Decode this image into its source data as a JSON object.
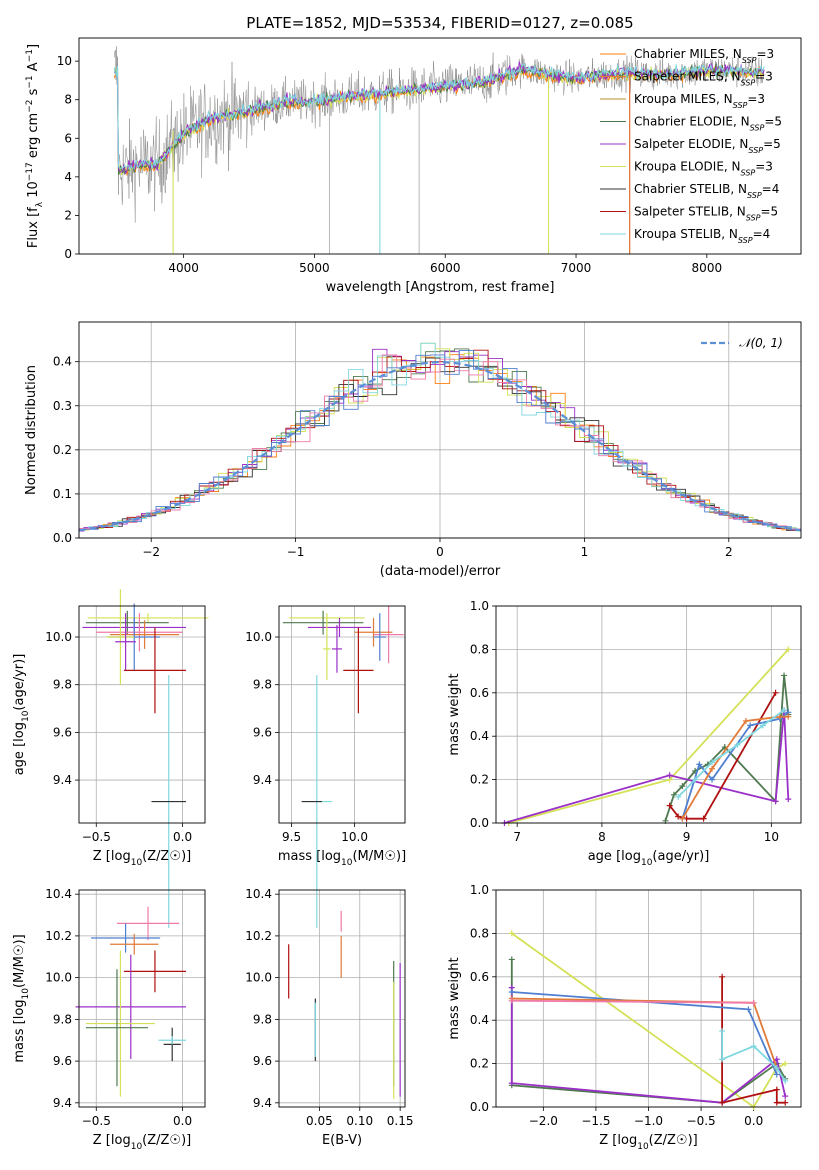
{
  "figure": {
    "title": "PLATE=1852, MJD=53534, FIBERID=0127, z=0.085"
  },
  "colors": {
    "Chabrier MILES": "#ff7f0e",
    "Salpeter MILES": "#e07b39",
    "Kroupa MILES": "#bc8f2c",
    "Chabrier ELODIE": "#4f7a4f",
    "Salpeter ELODIE": "#9b30c8",
    "Kroupa ELODIE": "#d4e157",
    "Chabrier STELIB": "#333333",
    "Salpeter STELIB": "#b01010",
    "Kroupa STELIB": "#7fd7e0",
    "MILES blue": "#4f7fd0",
    "MILES pink": "#f07aa8",
    "data": "#888888",
    "normal curve": "#5b8fd6"
  },
  "chart_data": [
    {
      "type": "line",
      "panel": "spectrum",
      "title": "PLATE=1852, MJD=53534, FIBERID=0127, z=0.085",
      "xlabel": "wavelength [Angstrom, rest frame]",
      "ylabel": "Flux [f_λ 10^-17 erg cm^-2 s^-1 A^-1]",
      "xlim": [
        3200,
        8720
      ],
      "ylim": [
        0,
        11.2
      ],
      "xticks": [
        4000,
        5000,
        6000,
        7000,
        8000
      ],
      "yticks": [
        0,
        2,
        4,
        6,
        8,
        10
      ],
      "legend_position": "top-right",
      "legend": [
        {
          "label": "Chabrier MILES",
          "sub": "SSP",
          "n": "3",
          "color": "#ff7f0e"
        },
        {
          "label": "Salpeter MILES",
          "sub": "SSP",
          "n": "3",
          "color": "#e07b39"
        },
        {
          "label": "Kroupa MILES",
          "sub": "SSP",
          "n": "3",
          "color": "#bc8f2c"
        },
        {
          "label": "Chabrier ELODIE",
          "sub": "SSP",
          "n": "5",
          "color": "#4f7a4f"
        },
        {
          "label": "Salpeter ELODIE",
          "sub": "SSP",
          "n": "5",
          "color": "#9b30c8"
        },
        {
          "label": "Kroupa ELODIE",
          "sub": "SSP",
          "n": "3",
          "color": "#d4e157"
        },
        {
          "label": "Chabrier STELIB",
          "sub": "SSP",
          "n": "4",
          "color": "#333333"
        },
        {
          "label": "Salpeter STELIB",
          "sub": "SSP",
          "n": "5",
          "color": "#b01010"
        },
        {
          "label": "Kroupa STELIB",
          "sub": "SSP",
          "n": "4",
          "color": "#7fd7e0"
        }
      ],
      "model_continuum": {
        "x": [
          3500,
          3650,
          3800,
          3900,
          4000,
          4200,
          4500,
          4800,
          5000,
          5300,
          5600,
          6000,
          6300,
          6600,
          6800,
          7000,
          7200,
          7400,
          7600,
          7800,
          8000,
          8200,
          8400
        ],
        "y": [
          4.3,
          4.6,
          4.6,
          5.5,
          6.2,
          7.0,
          7.4,
          7.9,
          7.9,
          8.2,
          8.4,
          8.7,
          8.9,
          9.6,
          9.3,
          9.1,
          9.3,
          9.4,
          9.3,
          9.4,
          9.5,
          9.5,
          9.4
        ]
      },
      "data_spikes": [
        {
          "x": 3920,
          "ymin": 0,
          "ymax": 6.5
        },
        {
          "x": 5115,
          "ymin": 0,
          "ymax": 8.0
        },
        {
          "x": 5500,
          "ymin": 0,
          "ymax": 8.3
        },
        {
          "x": 5800,
          "ymin": 0,
          "ymax": 8.5
        },
        {
          "x": 6790,
          "ymin": 0,
          "ymax": 9.2
        },
        {
          "x": 7410,
          "ymin": 0,
          "ymax": 9.4
        }
      ]
    },
    {
      "type": "line",
      "panel": "residual distribution",
      "xlabel": "(data-model)/error",
      "ylabel": "Normed distribution",
      "xlim": [
        -2.5,
        2.5
      ],
      "ylim": [
        0,
        0.49
      ],
      "xticks": [
        -2,
        -1,
        0,
        1,
        2
      ],
      "yticks": [
        0.0,
        0.1,
        0.2,
        0.3,
        0.4
      ],
      "legend_position": "top-right",
      "legend": [
        {
          "label": "𝒩(0, 1)",
          "color": "#5b8fd6",
          "style": "dashed"
        }
      ],
      "histogram_bin_width": 0.1
    },
    {
      "type": "scatter",
      "panel": "age vs Z",
      "xlabel": "Z [log10(Z/Z☉)]",
      "ylabel": "age  [log10(age/yr)]",
      "xlim": [
        -0.6,
        0.13
      ],
      "ylim": [
        9.22,
        10.13
      ],
      "xticks": [
        -0.5,
        0.0
      ],
      "yticks": [
        9.4,
        9.6,
        9.8,
        10.0
      ],
      "points": [
        {
          "x": -0.2,
          "xerr": 0.35,
          "y": 10.08,
          "yerr": 0.02,
          "color": "#d4e157"
        },
        {
          "x": -0.32,
          "xerr": 0.24,
          "y": 10.06,
          "yerr": 0.05,
          "color": "#4f7a4f"
        },
        {
          "x": -0.28,
          "xerr": 0.3,
          "y": 10.04,
          "yerr": 0.04,
          "color": "#9b30c8"
        },
        {
          "x": -0.25,
          "xerr": 0.25,
          "y": 10.02,
          "yerr": 0.08,
          "color": "#f07aa8"
        },
        {
          "x": -0.22,
          "xerr": 0.2,
          "y": 10.01,
          "yerr": 0.06,
          "color": "#e07b39"
        },
        {
          "x": -0.28,
          "xerr": 0.15,
          "y": 10.0,
          "yerr": 0.14,
          "color": "#4f7fd0"
        },
        {
          "x": -0.36,
          "xerr": 0.08,
          "y": 10.0,
          "yerr": 0.2,
          "color": "#d4e157"
        },
        {
          "x": -0.33,
          "xerr": 0.06,
          "y": 9.98,
          "yerr": 0.12,
          "color": "#9b30c8"
        },
        {
          "x": -0.16,
          "xerr": 0.18,
          "y": 9.86,
          "yerr": 0.18,
          "color": "#b01010"
        },
        {
          "x": -0.08,
          "xerr": 0.1,
          "y": 9.31,
          "yerr": 0.53,
          "color": "#7fd7e0"
        },
        {
          "x": -0.08,
          "xerr": 0.1,
          "y": 9.31,
          "yerr": 0.0,
          "color": "#333333"
        }
      ]
    },
    {
      "type": "scatter",
      "panel": "age vs mass",
      "xlabel": "mass [log10(M/M☉)]",
      "ylabel": "",
      "xlim": [
        9.4,
        10.4
      ],
      "ylim": [
        9.22,
        10.13
      ],
      "xticks": [
        9.5,
        10.0
      ],
      "yticks": [
        9.4,
        9.6,
        9.8,
        10.0
      ],
      "points": [
        {
          "x": 9.78,
          "xerr": 0.3,
          "y": 10.08,
          "yerr": 0.02,
          "color": "#d4e157"
        },
        {
          "x": 9.75,
          "xerr": 0.32,
          "y": 10.06,
          "yerr": 0.05,
          "color": "#4f7a4f"
        },
        {
          "x": 9.88,
          "xerr": 0.25,
          "y": 10.04,
          "yerr": 0.04,
          "color": "#9b30c8"
        },
        {
          "x": 10.27,
          "xerr": 0.12,
          "y": 10.01,
          "yerr": 0.12,
          "color": "#f07aa8"
        },
        {
          "x": 10.15,
          "xerr": 0.15,
          "y": 10.02,
          "yerr": 0.06,
          "color": "#e07b39"
        },
        {
          "x": 10.2,
          "xerr": 0.05,
          "y": 10.0,
          "yerr": 0.1,
          "color": "#4f7fd0"
        },
        {
          "x": 9.78,
          "xerr": 0.03,
          "y": 9.95,
          "yerr": 0.13,
          "color": "#d4e157"
        },
        {
          "x": 9.86,
          "xerr": 0.04,
          "y": 9.95,
          "yerr": 0.1,
          "color": "#9b30c8"
        },
        {
          "x": 10.03,
          "xerr": 0.12,
          "y": 9.86,
          "yerr": 0.18,
          "color": "#b01010"
        },
        {
          "x": 9.7,
          "xerr": 0.12,
          "y": 9.31,
          "yerr": 0.53,
          "color": "#7fd7e0"
        },
        {
          "x": 9.66,
          "xerr": 0.08,
          "y": 9.31,
          "yerr": 0.0,
          "color": "#333333"
        }
      ]
    },
    {
      "type": "line",
      "panel": "mass weight vs age",
      "xlabel": "age  [log10(age/yr)]",
      "ylabel": "mass weight",
      "xlim": [
        6.75,
        10.35
      ],
      "ylim": [
        0,
        1.0
      ],
      "xticks": [
        7,
        8,
        9,
        10
      ],
      "yticks": [
        0.0,
        0.2,
        0.4,
        0.6,
        0.8,
        1.0
      ],
      "series": [
        {
          "color": "#d4e157",
          "x": [
            6.9,
            8.8,
            10.2
          ],
          "y": [
            0.0,
            0.2,
            0.8
          ]
        },
        {
          "color": "#4f7a4f",
          "x": [
            8.75,
            8.85,
            8.95,
            9.1,
            9.25,
            9.45,
            10.05,
            10.15,
            10.2
          ],
          "y": [
            0.01,
            0.13,
            0.17,
            0.24,
            0.27,
            0.35,
            0.1,
            0.68,
            0.5
          ]
        },
        {
          "color": "#9b30c8",
          "x": [
            6.85,
            8.8,
            10.05,
            10.15,
            10.2
          ],
          "y": [
            0.0,
            0.22,
            0.1,
            0.52,
            0.11
          ]
        },
        {
          "color": "#b01010",
          "x": [
            8.8,
            8.9,
            9.0,
            9.2,
            10.05
          ],
          "y": [
            0.08,
            0.03,
            0.02,
            0.02,
            0.6
          ]
        },
        {
          "color": "#4f7fd0",
          "x": [
            8.95,
            9.15,
            9.3,
            9.75,
            10.1,
            10.2
          ],
          "y": [
            0.02,
            0.27,
            0.2,
            0.45,
            0.48,
            0.51
          ]
        },
        {
          "color": "#e07b39",
          "x": [
            8.95,
            9.3,
            9.7,
            10.1,
            10.2
          ],
          "y": [
            0.02,
            0.25,
            0.47,
            0.49,
            0.49
          ]
        },
        {
          "color": "#7fd7e0",
          "x": [
            8.9,
            9.1,
            9.3,
            9.6,
            9.9,
            10.15
          ],
          "y": [
            0.12,
            0.2,
            0.28,
            0.36,
            0.45,
            0.52
          ]
        }
      ]
    },
    {
      "type": "scatter",
      "panel": "mass vs Z",
      "xlabel": "Z [log10(Z/Z☉)]",
      "ylabel": "mass [log10(M/M☉)]",
      "xlim": [
        -0.6,
        0.13
      ],
      "ylim": [
        9.38,
        10.42
      ],
      "xticks": [
        -0.5,
        0.0
      ],
      "yticks": [
        9.4,
        9.6,
        9.8,
        10.0,
        10.2,
        10.4
      ],
      "points": [
        {
          "x": -0.2,
          "xerr": 0.18,
          "y": 10.26,
          "yerr": 0.08,
          "color": "#f07aa8"
        },
        {
          "x": -0.33,
          "xerr": 0.2,
          "y": 10.19,
          "yerr": 0.07,
          "color": "#4f7fd0"
        },
        {
          "x": -0.28,
          "xerr": 0.14,
          "y": 10.16,
          "yerr": 0.05,
          "color": "#e07b39"
        },
        {
          "x": -0.16,
          "xerr": 0.18,
          "y": 10.03,
          "yerr": 0.1,
          "color": "#b01010"
        },
        {
          "x": -0.3,
          "xerr": 0.32,
          "y": 9.86,
          "yerr": 0.25,
          "color": "#9b30c8"
        },
        {
          "x": -0.36,
          "xerr": 0.2,
          "y": 9.78,
          "yerr": 0.35,
          "color": "#d4e157"
        },
        {
          "x": -0.38,
          "xerr": 0.18,
          "y": 9.76,
          "yerr": 0.28,
          "color": "#4f7a4f"
        },
        {
          "x": -0.06,
          "xerr": 0.05,
          "y": 9.68,
          "yerr": 0.08,
          "color": "#333333"
        },
        {
          "x": -0.06,
          "xerr": 0.08,
          "y": 9.7,
          "yerr": 0.02,
          "color": "#7fd7e0"
        }
      ]
    },
    {
      "type": "scatter",
      "panel": "mass vs E(B-V)",
      "xlabel": "E(B-V)",
      "ylabel": "",
      "xlim": [
        0.0,
        0.156
      ],
      "ylim": [
        9.38,
        10.42
      ],
      "xticks": [
        0.05,
        0.1,
        0.15
      ],
      "yticks": [
        9.4,
        9.6,
        9.8,
        10.0,
        10.2,
        10.4
      ],
      "points": [
        {
          "x": 0.012,
          "y": 10.03,
          "yerr": 0.13,
          "color": "#b01010"
        },
        {
          "x": 0.045,
          "y": 9.75,
          "yerr": 0.15,
          "color": "#333333"
        },
        {
          "x": 0.045,
          "y": 9.75,
          "yerr": 0.13,
          "color": "#7fd7e0"
        },
        {
          "x": 0.077,
          "y": 10.1,
          "yerr": 0.1,
          "color": "#e07b39"
        },
        {
          "x": 0.077,
          "y": 10.27,
          "yerr": 0.05,
          "color": "#f07aa8"
        },
        {
          "x": 0.142,
          "y": 9.78,
          "yerr": 0.3,
          "color": "#4f7a4f"
        },
        {
          "x": 0.142,
          "y": 9.7,
          "yerr": 0.28,
          "color": "#d4e157"
        },
        {
          "x": 0.15,
          "y": 9.75,
          "yerr": 0.32,
          "color": "#9b30c8"
        }
      ]
    },
    {
      "type": "line",
      "panel": "mass weight vs Z",
      "xlabel": "Z [log10(Z/Z☉)]",
      "ylabel": "mass weight",
      "xlim": [
        -2.45,
        0.45
      ],
      "ylim": [
        0,
        1.0
      ],
      "xticks": [
        -2.0,
        -1.5,
        -1.0,
        -0.5,
        0.0
      ],
      "yticks": [
        0.0,
        0.2,
        0.4,
        0.6,
        0.8,
        1.0
      ],
      "series": [
        {
          "color": "#d4e157",
          "x": [
            -2.3,
            0.0,
            0.22,
            0.3
          ],
          "y": [
            0.8,
            0.0,
            0.18,
            0.2
          ]
        },
        {
          "color": "#4f7a4f",
          "x": [
            -2.3,
            -2.3,
            -0.3,
            0.22,
            0.3
          ],
          "y": [
            0.68,
            0.1,
            0.02,
            0.2,
            0.13
          ]
        },
        {
          "color": "#9b30c8",
          "x": [
            -2.3,
            -2.3,
            -0.3,
            0.22,
            0.3
          ],
          "y": [
            0.55,
            0.11,
            0.02,
            0.22,
            0.05
          ]
        },
        {
          "color": "#b01010",
          "x": [
            -0.3,
            -0.3,
            0.22,
            0.22,
            0.3
          ],
          "y": [
            0.6,
            0.02,
            0.08,
            0.02,
            0.02
          ]
        },
        {
          "color": "#4f7fd0",
          "x": [
            -2.3,
            -0.05,
            0.22
          ],
          "y": [
            0.53,
            0.45,
            0.15
          ]
        },
        {
          "color": "#e07b39",
          "x": [
            -2.3,
            0.0,
            0.22
          ],
          "y": [
            0.5,
            0.48,
            0.18
          ]
        },
        {
          "color": "#f07aa8",
          "x": [
            -2.3,
            0.0
          ],
          "y": [
            0.49,
            0.48
          ]
        },
        {
          "color": "#7fd7e0",
          "x": [
            -0.3,
            -0.3,
            0.0,
            0.22,
            0.3
          ],
          "y": [
            0.35,
            0.22,
            0.28,
            0.18,
            0.12
          ]
        }
      ]
    }
  ]
}
